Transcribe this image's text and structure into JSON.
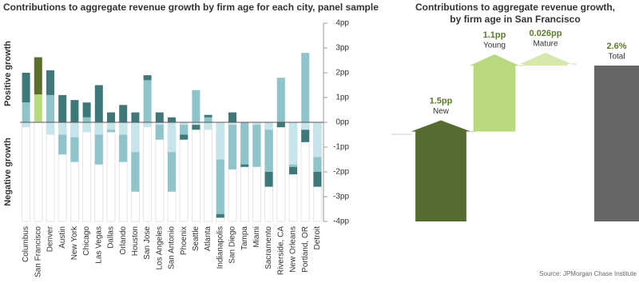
{
  "charts": [
    {
      "type": "stacked_bar",
      "title": "Contributions to aggregate revenue growth by firm age for each city, panel sample",
      "y_label_positive": "Positive growth",
      "y_label_negative": "Negative growth",
      "categories": [
        "Columbus",
        "San Francisco",
        "Denver",
        "Austin",
        "New York",
        "Chicago",
        "Las Vegas",
        "Dallas",
        "Orlando",
        "Houston",
        "San Jose",
        "Los Angeles",
        "San Antonio",
        "Phoenix",
        "Seattle",
        "Atlanta",
        "Indianapolis",
        "San Diego",
        "Tampa",
        "Miami",
        "Sacramento",
        "Riverside, CA",
        "New Orleans",
        "Portland, OR",
        "Detroit"
      ],
      "highlight_index": 1,
      "series": [
        {
          "color": "#c5e5eb",
          "highlight_color": "#d9ebb2",
          "values": [
            -0.2,
            0.026,
            -0.5,
            -0.5,
            -0.6,
            -0.4,
            -0.5,
            -0.3,
            -0.5,
            -1.2,
            -0.2,
            -0.1,
            -1.2,
            -0.1,
            -0.1,
            -0.3,
            -1.5,
            -0.1,
            0,
            -0.1,
            -0.3,
            0,
            -1.7,
            -0.3,
            -1.4
          ]
        },
        {
          "color": "#8fc4ca",
          "highlight_color": "#b8d97c",
          "values": [
            0.8,
            1.1,
            1.1,
            -0.8,
            -1.0,
            0.2,
            -1.2,
            -0.1,
            -1.1,
            -1.6,
            1.7,
            -0.6,
            -1.6,
            -0.4,
            1.3,
            0.2,
            -2.2,
            -1.8,
            -1.7,
            -1.7,
            -1.7,
            1.8,
            -0.1,
            2.8,
            -0.6
          ]
        },
        {
          "color": "#3f7878",
          "highlight_color": "#5d6e2d",
          "values": [
            1.2,
            1.5,
            1.0,
            1.1,
            0.9,
            0.6,
            1.5,
            0.4,
            0.7,
            0.4,
            0.2,
            0.4,
            0.2,
            -0.2,
            -0.2,
            0.1,
            -0.15,
            0.4,
            -0.1,
            0,
            -0.6,
            -0.2,
            -0.3,
            -0.5,
            -0.6
          ]
        }
      ],
      "ylim": [
        -4,
        4
      ],
      "yticks": [
        {
          "value": 4,
          "label": "4pp"
        },
        {
          "value": 3,
          "label": "3pp"
        },
        {
          "value": 2,
          "label": "2pp"
        },
        {
          "value": 1,
          "label": "1pp"
        },
        {
          "value": 0,
          "label": "0pp"
        },
        {
          "value": -1,
          "label": "-1pp"
        },
        {
          "value": -2,
          "label": "-2pp"
        },
        {
          "value": -3,
          "label": "-3pp"
        },
        {
          "value": -4,
          "label": "-4pp"
        }
      ]
    },
    {
      "type": "waterfall",
      "title": [
        "Contributions to aggregate revenue growth,",
        "by firm age in San Francisco"
      ],
      "categories": [
        "New",
        "Young",
        "Mature",
        "Total"
      ],
      "values": [
        1.5,
        1.1,
        0.026,
        2.6
      ],
      "value_labels": [
        "1.5pp",
        "1.1pp",
        "0.026pp",
        "2.6%"
      ],
      "colors": [
        "#556b2f",
        "#b8d97c",
        "#d6e8aa",
        "#666666"
      ],
      "source": "Source: JPMorgan Chase Institute"
    }
  ]
}
